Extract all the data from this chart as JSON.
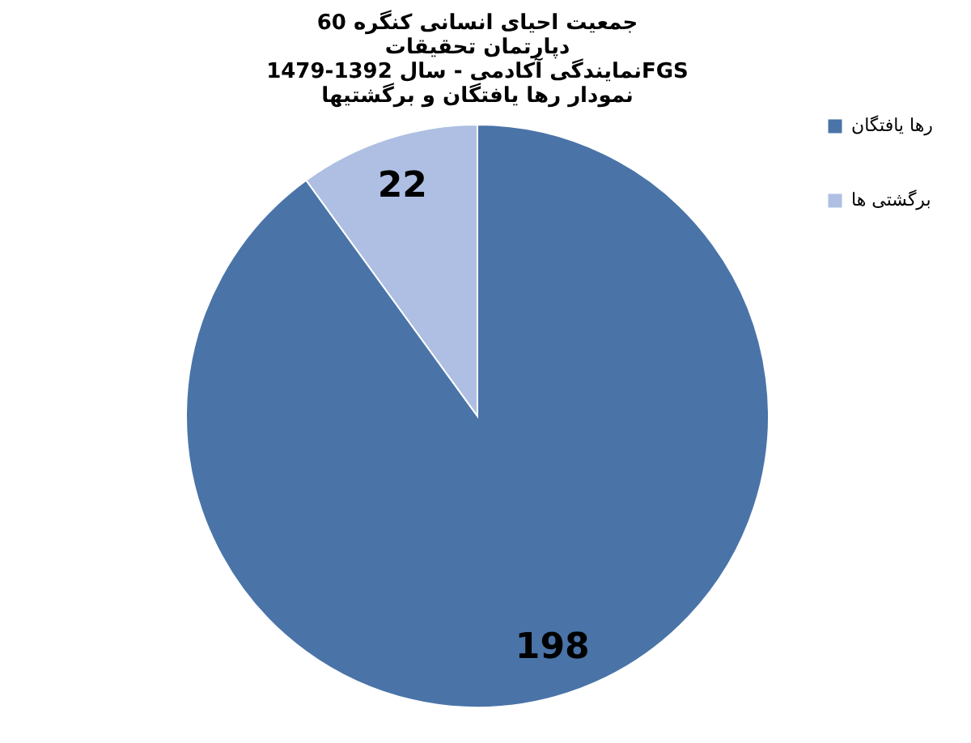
{
  "chart_data": {
    "type": "pie",
    "title": [
      "جمعیت احیای انسانی کنگره 60",
      "دپارتمان تحقیقات",
      "نمایندگی آکادمی - سال 1392-1479FGS",
      "نمودار رها یافتگان و برگشتیها"
    ],
    "categories": [
      "رها یافتگان",
      "برگشتی ها"
    ],
    "values": [
      198,
      22
    ],
    "colors": [
      "#4a74a8",
      "#aebfe3"
    ],
    "data_labels": true,
    "legend": "right"
  }
}
